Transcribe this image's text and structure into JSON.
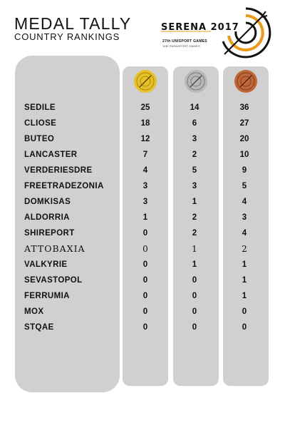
{
  "header": {
    "title": "MEDAL TALLY",
    "subtitle": "COUNTRY RANKINGS"
  },
  "logo": {
    "wordmark": "SERENA 2017",
    "line1": "27th UNISPORT GAMES",
    "line2": "16th PARASPORT GAMES"
  },
  "colors": {
    "panel": "#d0d0d0",
    "gold": "#e6c12a",
    "silver": "#b8b8b8",
    "bronze": "#c0673a",
    "logo_orange": "#e89a1c"
  },
  "medal_icons": [
    "gold-medal-icon",
    "silver-medal-icon",
    "bronze-medal-icon"
  ],
  "rankings": [
    {
      "country": "SEDILE",
      "gold": "25",
      "silver": "14",
      "bronze": "36"
    },
    {
      "country": "CLIOSE",
      "gold": "18",
      "silver": "6",
      "bronze": "27"
    },
    {
      "country": "BUTEO",
      "gold": "12",
      "silver": "3",
      "bronze": "20"
    },
    {
      "country": "LANCASTER",
      "gold": "7",
      "silver": "2",
      "bronze": "10"
    },
    {
      "country": "VERDERIESDRE",
      "gold": "4",
      "silver": "5",
      "bronze": "9"
    },
    {
      "country": "FREETRADEZONIA",
      "gold": "3",
      "silver": "3",
      "bronze": "5"
    },
    {
      "country": "DOMKISAS",
      "gold": "3",
      "silver": "1",
      "bronze": "4"
    },
    {
      "country": "ALDORRIA",
      "gold": "1",
      "silver": "2",
      "bronze": "3"
    },
    {
      "country": "SHIREPORT",
      "gold": "0",
      "silver": "2",
      "bronze": "4"
    },
    {
      "country": "ATTOBAXIA",
      "gold": "0",
      "silver": "1",
      "bronze": "2"
    },
    {
      "country": "VALKYRIE",
      "gold": "0",
      "silver": "1",
      "bronze": "1"
    },
    {
      "country": "SEVASTOPOL",
      "gold": "0",
      "silver": "0",
      "bronze": "1"
    },
    {
      "country": "FERRUMIA",
      "gold": "0",
      "silver": "0",
      "bronze": "1"
    },
    {
      "country": "MOX",
      "gold": "0",
      "silver": "0",
      "bronze": "0"
    },
    {
      "country": "STQAE",
      "gold": "0",
      "silver": "0",
      "bronze": "0"
    }
  ]
}
